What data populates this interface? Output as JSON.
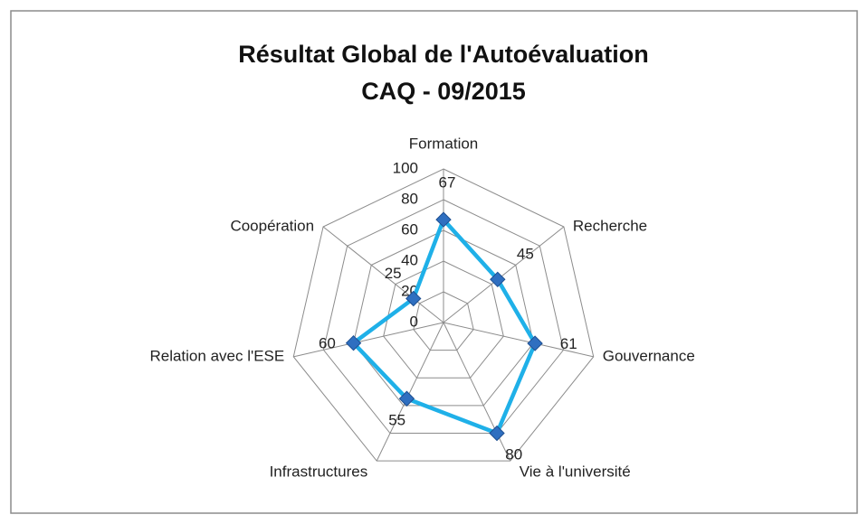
{
  "chart_data": {
    "type": "radar",
    "title": "Résultat Global de l'Autoévaluation",
    "subtitle": "CAQ - 09/2015",
    "categories": [
      "Formation",
      "Recherche",
      "Gouvernance",
      "Vie à l'université",
      "Infrastructures",
      "Relation avec l'ESE",
      "Coopération"
    ],
    "series": [
      {
        "color": "#1fb0e8",
        "marker_color": "#2f6fc0",
        "values": [
          67,
          45,
          61,
          80,
          55,
          60,
          25
        ]
      }
    ],
    "ylim": [
      0,
      100
    ],
    "yticks": [
      0,
      20,
      40,
      60,
      80,
      100
    ],
    "grid": true
  }
}
